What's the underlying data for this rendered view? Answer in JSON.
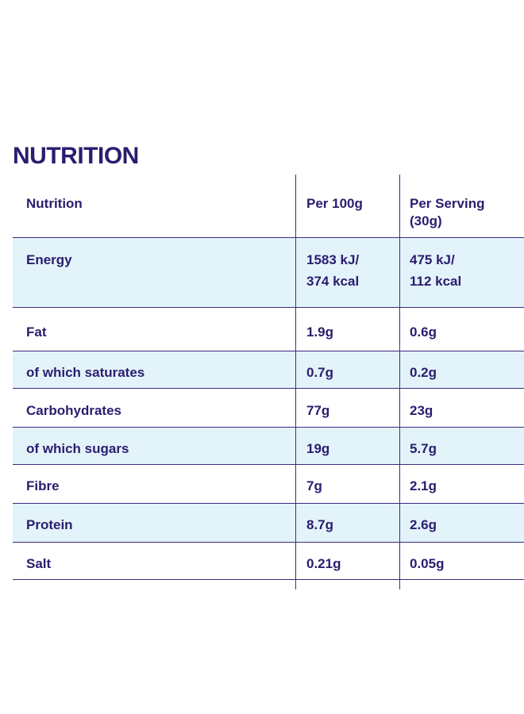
{
  "title": "NUTRITION",
  "headers": [
    "Nutrition",
    "Per 100g",
    "Per Serving (30g)"
  ],
  "header_serving_line1": "Per Serving",
  "header_serving_line2": "(30g)",
  "rows": [
    {
      "name": "Energy",
      "per100": [
        "1583 kJ/",
        "374 kcal"
      ],
      "perServing": [
        "475 kJ/",
        "112 kcal"
      ],
      "shaded": true
    },
    {
      "name": "Fat",
      "per100": [
        "1.9g"
      ],
      "perServing": [
        "0.6g"
      ],
      "shaded": false
    },
    {
      "name": "of which saturates",
      "per100": [
        "0.7g"
      ],
      "perServing": [
        "0.2g"
      ],
      "shaded": true
    },
    {
      "name": "Carbohydrates",
      "per100": [
        "77g"
      ],
      "perServing": [
        "23g"
      ],
      "shaded": false
    },
    {
      "name": "of which sugars",
      "per100": [
        "19g"
      ],
      "perServing": [
        "5.7g"
      ],
      "shaded": true
    },
    {
      "name": "Fibre",
      "per100": [
        "7g"
      ],
      "perServing": [
        "2.1g"
      ],
      "shaded": false
    },
    {
      "name": "Protein",
      "per100": [
        "8.7g"
      ],
      "perServing": [
        "2.6g"
      ],
      "shaded": true
    },
    {
      "name": "Salt",
      "per100": [
        "0.21g"
      ],
      "perServing": [
        "0.05g"
      ],
      "shaded": false
    }
  ]
}
